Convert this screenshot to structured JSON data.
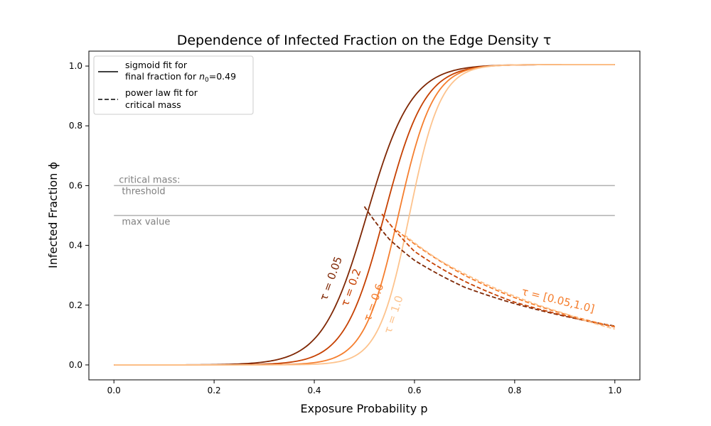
{
  "chart_data": {
    "type": "line",
    "title": "Dependence of Infected Fraction on the Edge Density τ",
    "xlabel": "Exposure Probability p",
    "ylabel": "Infected Fraction ϕ",
    "xlim": [
      -0.05,
      1.05
    ],
    "ylim": [
      -0.05,
      1.05
    ],
    "xticks": [
      0.0,
      0.2,
      0.4,
      0.6,
      0.8,
      1.0
    ],
    "yticks": [
      0.0,
      0.2,
      0.4,
      0.6,
      0.8,
      1.0
    ],
    "xtick_labels": [
      "0.0",
      "0.2",
      "0.4",
      "0.6",
      "0.8",
      "1.0"
    ],
    "ytick_labels": [
      "0.0",
      "0.2",
      "0.4",
      "0.6",
      "0.8",
      "1.0"
    ],
    "grid": false,
    "legend": {
      "placement": "top-left",
      "entries": [
        {
          "style": "solid",
          "line1": "sigmoid fit for",
          "line2_prefix": "final fraction for ",
          "line2_var": "n",
          "line2_sub": "0",
          "line2_suffix": "=0.49"
        },
        {
          "style": "dashed",
          "line1": "power law fit for",
          "line2": "critical mass"
        }
      ]
    },
    "reference_lines": [
      {
        "y": 0.6,
        "x_range": [
          0.0,
          1.0
        ],
        "label_line1": "critical mass:",
        "label_line2": " threshold",
        "color": "#b0b0b0"
      },
      {
        "y": 0.5,
        "x_range": [
          0.0,
          1.0
        ],
        "label": " max value",
        "color": "#b0b0b0"
      }
    ],
    "series": [
      {
        "name": "sigmoid τ=0.05",
        "kind": "sigmoid",
        "color": "#7f2704",
        "x0": 0.505,
        "k": 22.5,
        "ymax": 1.005,
        "x_range": [
          0.0,
          1.0
        ]
      },
      {
        "name": "sigmoid τ=0.2",
        "kind": "sigmoid",
        "color": "#c64102",
        "x0": 0.54,
        "k": 25,
        "ymax": 1.005,
        "x_range": [
          0.0,
          1.0
        ]
      },
      {
        "name": "sigmoid τ=0.6",
        "kind": "sigmoid",
        "color": "#f57e2e",
        "x0": 0.568,
        "k": 29,
        "ymax": 1.005,
        "x_range": [
          0.0,
          1.0
        ]
      },
      {
        "name": "sigmoid τ=1.0",
        "kind": "sigmoid",
        "color": "#fdc38d",
        "x0": 0.59,
        "k": 32,
        "ymax": 1.005,
        "x_range": [
          0.0,
          1.0
        ]
      },
      {
        "name": "power law τ=0.05",
        "kind": "power",
        "color": "#7f2704",
        "x_range": [
          0.5,
          1.0
        ],
        "points": [
          [
            0.5,
            0.53
          ],
          [
            0.55,
            0.42
          ],
          [
            0.6,
            0.35
          ],
          [
            0.7,
            0.26
          ],
          [
            0.8,
            0.205
          ],
          [
            0.9,
            0.163
          ],
          [
            1.0,
            0.13
          ]
        ]
      },
      {
        "name": "power law τ=0.2",
        "kind": "power",
        "color": "#c64102",
        "x_range": [
          0.535,
          1.0
        ],
        "points": [
          [
            0.535,
            0.505
          ],
          [
            0.6,
            0.38
          ],
          [
            0.7,
            0.28
          ],
          [
            0.8,
            0.21
          ],
          [
            0.9,
            0.165
          ],
          [
            1.0,
            0.127
          ]
        ]
      },
      {
        "name": "power law τ=0.6",
        "kind": "power",
        "color": "#f57e2e",
        "x_range": [
          0.565,
          1.0
        ],
        "points": [
          [
            0.565,
            0.45
          ],
          [
            0.6,
            0.405
          ],
          [
            0.7,
            0.3
          ],
          [
            0.8,
            0.225
          ],
          [
            0.9,
            0.17
          ],
          [
            1.0,
            0.128
          ]
        ]
      },
      {
        "name": "power law τ=1.0",
        "kind": "power",
        "color": "#fdc38d",
        "x_range": [
          0.58,
          1.0
        ],
        "points": [
          [
            0.58,
            0.435
          ],
          [
            0.65,
            0.35
          ],
          [
            0.7,
            0.305
          ],
          [
            0.8,
            0.23
          ],
          [
            0.9,
            0.172
          ],
          [
            1.0,
            0.12
          ]
        ]
      }
    ],
    "annotations": [
      {
        "text": "τ = 0.05",
        "x": 0.44,
        "y": 0.285,
        "angle_deg": -70,
        "color": "#7f2704"
      },
      {
        "text": "τ = 0.2",
        "x": 0.48,
        "y": 0.255,
        "angle_deg": -70,
        "color": "#c64102"
      },
      {
        "text": "τ = 0.6",
        "x": 0.525,
        "y": 0.205,
        "angle_deg": -70,
        "color": "#f57e2e"
      },
      {
        "text": "τ = 1.0",
        "x": 0.565,
        "y": 0.165,
        "angle_deg": -72,
        "color": "#fdc38d"
      },
      {
        "text": "τ = [0.05,1.0]",
        "x": 0.885,
        "y": 0.205,
        "angle_deg": 14,
        "color": "#f57e2e"
      }
    ]
  }
}
